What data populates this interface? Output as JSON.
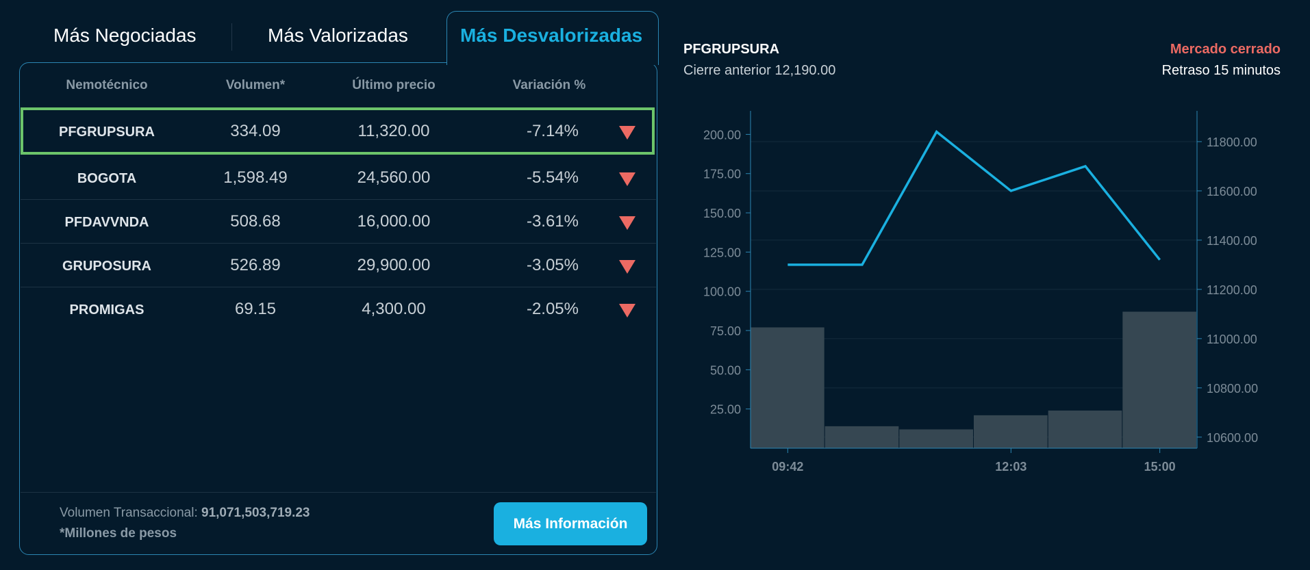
{
  "tabs": [
    {
      "label": "Más Negociadas",
      "active": false
    },
    {
      "label": "Más Valorizadas",
      "active": false
    },
    {
      "label": "Más Desvalorizadas",
      "active": true
    }
  ],
  "table": {
    "headers": [
      "Nemotécnico",
      "Volumen*",
      "Último precio",
      "Variación %"
    ],
    "rows": [
      {
        "symbol": "PFGRUPSURA",
        "volume": "334.09",
        "price": "11,320.00",
        "variation": "-7.14%",
        "trend": "down",
        "selected": true
      },
      {
        "symbol": "BOGOTA",
        "volume": "1,598.49",
        "price": "24,560.00",
        "variation": "-5.54%",
        "trend": "down"
      },
      {
        "symbol": "PFDAVVNDA",
        "volume": "508.68",
        "price": "16,000.00",
        "variation": "-3.61%",
        "trend": "down"
      },
      {
        "symbol": "GRUPOSURA",
        "volume": "526.89",
        "price": "29,900.00",
        "variation": "-3.05%",
        "trend": "down"
      },
      {
        "symbol": "PROMIGAS",
        "volume": "69.15",
        "price": "4,300.00",
        "variation": "-2.05%",
        "trend": "down"
      }
    ]
  },
  "footer": {
    "volume_label": "Volumen Transaccional: ",
    "volume_value": "91,071,503,719.23",
    "note": "*Millones de pesos",
    "button_label": "Más Información"
  },
  "detail": {
    "symbol": "PFGRUPSURA",
    "previous_close": "Cierre anterior 12,190.00",
    "market_status": "Mercado cerrado",
    "delay": "Retraso 15 minutos"
  },
  "colors": {
    "background": "#041a2b",
    "accent": "#1ab0e0",
    "down": "#ec6a63",
    "selected_border": "#6cc46a",
    "volume_bar": "#364752"
  },
  "chart_data": {
    "type": "bar+line",
    "x_tick_labels": [
      "09:42",
      "12:03",
      "15:00"
    ],
    "x_tick_bins": [
      0,
      3,
      5
    ],
    "volume": {
      "values": [
        77,
        14,
        12,
        21,
        24,
        87
      ],
      "axis": "left",
      "ylim": [
        0,
        215
      ],
      "ticks": [
        25,
        50,
        75,
        100,
        125,
        150,
        175,
        200
      ],
      "tick_labels": [
        "25.00",
        "50.00",
        "75.00",
        "100.00",
        "125.00",
        "150.00",
        "175.00",
        "200.00"
      ]
    },
    "price": {
      "values": [
        11300,
        11300,
        11840,
        11600,
        11700,
        11320
      ],
      "axis": "right",
      "ylim": [
        10555,
        11925
      ],
      "ticks": [
        10600,
        10800,
        11000,
        11200,
        11400,
        11600,
        11800
      ],
      "tick_labels": [
        "10600.00",
        "10800.00",
        "11000.00",
        "11200.00",
        "11400.00",
        "11600.00",
        "11800.00"
      ]
    },
    "grid": true
  }
}
